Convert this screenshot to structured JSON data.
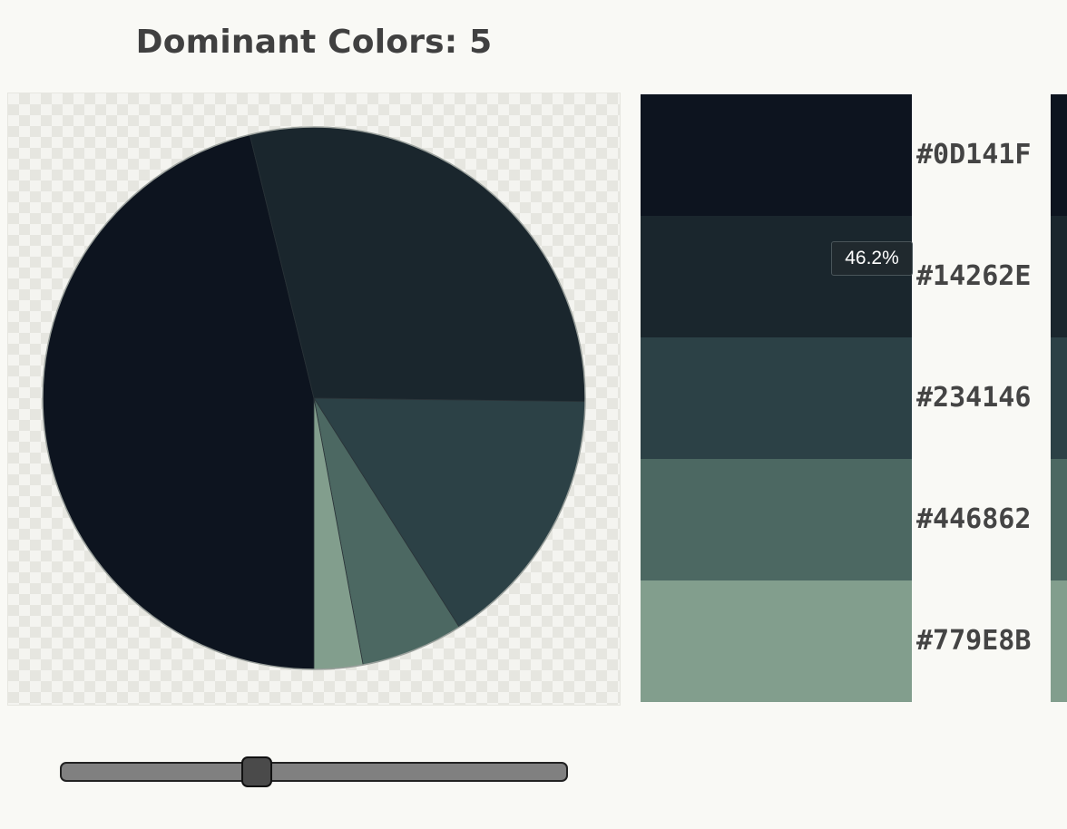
{
  "title": "Dominant Colors: 5",
  "tooltip": {
    "text": "46.2%"
  },
  "slider": {
    "value_fraction": 0.38
  },
  "palette": [
    {
      "hex_label": "#0D141F",
      "color": "#0d141f"
    },
    {
      "hex_label": "#14262E",
      "color": "#1a262d"
    },
    {
      "hex_label": "#234146",
      "color": "#2c4146"
    },
    {
      "hex_label": "#446862",
      "color": "#4c6862"
    },
    {
      "hex_label": "#779E8B",
      "color": "#829e8d"
    }
  ],
  "chart_data": {
    "type": "pie",
    "categories": [
      "#0D141F",
      "#14262E",
      "#234146",
      "#446862",
      "#779E8B"
    ],
    "values": [
      46.2,
      29.0,
      15.8,
      6.1,
      2.9
    ],
    "colors": [
      "#0d141f",
      "#1a262d",
      "#2c4146",
      "#4c6862",
      "#829e8d"
    ]
  }
}
